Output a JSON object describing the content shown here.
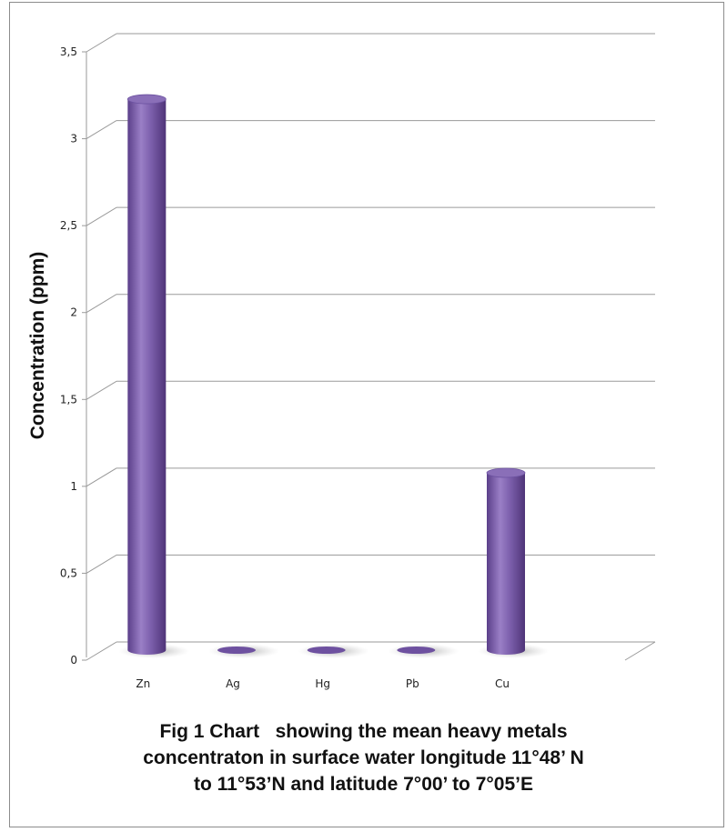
{
  "chart_data": {
    "type": "bar",
    "style": "3d-cylinder",
    "categories": [
      "Zn",
      "Ag",
      "Hg",
      "Pb",
      "Cu"
    ],
    "values": [
      3.17,
      0.0,
      0.0,
      0.0,
      1.02
    ],
    "ylabel": "Concentration (ppm)",
    "xlabel": "",
    "ylim": [
      0,
      3.5
    ],
    "yticks": [
      "0",
      "0,5",
      "1",
      "1,5",
      "2",
      "2,5",
      "3",
      "3,5"
    ],
    "grid": true,
    "legend": "none",
    "bar_color": "#7b5fa8"
  },
  "caption": {
    "line1": "Fig 1 Chart   showing the mean heavy metals",
    "line2": "concentraton in surface water longitude 11°48’ N",
    "line3": "to 11°53’N and latitude 7°00’ to 7°05’E"
  }
}
